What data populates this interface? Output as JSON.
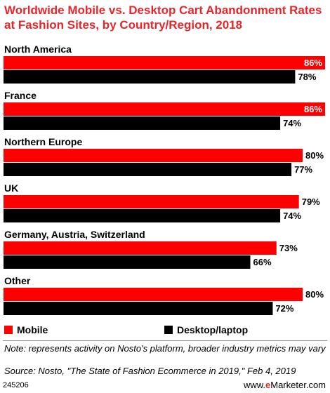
{
  "title": "Worldwide Mobile vs. Desktop Cart Abandonment Rates at Fashion Sites, by Country/Region, 2018",
  "chart_data": {
    "type": "bar",
    "orientation": "horizontal",
    "title": "Worldwide Mobile vs. Desktop Cart Abandonment Rates at Fashion Sites, by Country/Region, 2018",
    "categories": [
      "North America",
      "France",
      "Northern Europe",
      "UK",
      "Germany, Austria, Switzerland",
      "Other"
    ],
    "series": [
      {
        "name": "Mobile",
        "values": [
          86,
          86,
          80,
          79,
          73,
          80
        ],
        "labels": [
          "86%",
          "86%",
          "80%",
          "79%",
          "73%",
          "80%"
        ],
        "color": "#ff0000"
      },
      {
        "name": "Desktop/laptop",
        "values": [
          78,
          74,
          77,
          74,
          66,
          72
        ],
        "labels": [
          "78%",
          "74%",
          "77%",
          "74%",
          "66%",
          "72%"
        ],
        "color": "#000000"
      }
    ],
    "xlim": [
      0,
      86
    ],
    "legend": "bottom",
    "grid": false,
    "value_unit": "%"
  },
  "legend": {
    "mobile": "Mobile",
    "desktop": "Desktop/laptop"
  },
  "note": "Note: represents activity on Nosto's platform, broader industry metrics may vary",
  "source": "Source: Nosto, \"The State of Fashion Ecommerce in 2019,\" Feb 4, 2019",
  "chart_id": "245206",
  "brand": {
    "prefix": "www.",
    "e": "e",
    "name": "Marketer",
    "suffix": ".com"
  }
}
